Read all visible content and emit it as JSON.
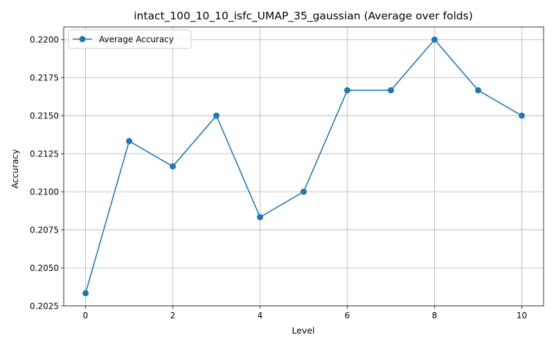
{
  "chart_data": {
    "type": "line",
    "title": "intact_100_10_10_isfc_UMAP_35_gaussian (Average over folds)",
    "xlabel": "Level",
    "ylabel": "Accuracy",
    "x": [
      0,
      1,
      2,
      3,
      4,
      5,
      6,
      7,
      8,
      9,
      10
    ],
    "series": [
      {
        "name": "Average Accuracy",
        "color": "#1f77b4",
        "marker": "circle",
        "values": [
          0.20333,
          0.21333,
          0.21167,
          0.215,
          0.20833,
          0.21,
          0.21667,
          0.21667,
          0.22,
          0.21667,
          0.215
        ]
      }
    ],
    "xlim": [
      -0.5,
      10.5
    ],
    "ylim": [
      0.2025,
      0.22083
    ],
    "xticks": [
      0,
      2,
      4,
      6,
      8,
      10
    ],
    "xtick_labels": [
      "0",
      "2",
      "4",
      "6",
      "8",
      "10"
    ],
    "yticks": [
      0.2025,
      0.205,
      0.2075,
      0.21,
      0.2125,
      0.215,
      0.2175,
      0.22
    ],
    "ytick_labels": [
      "0.2025",
      "0.2050",
      "0.2075",
      "0.2100",
      "0.2125",
      "0.2150",
      "0.2175",
      "0.2200"
    ],
    "grid": true,
    "legend_position": "top-left"
  }
}
